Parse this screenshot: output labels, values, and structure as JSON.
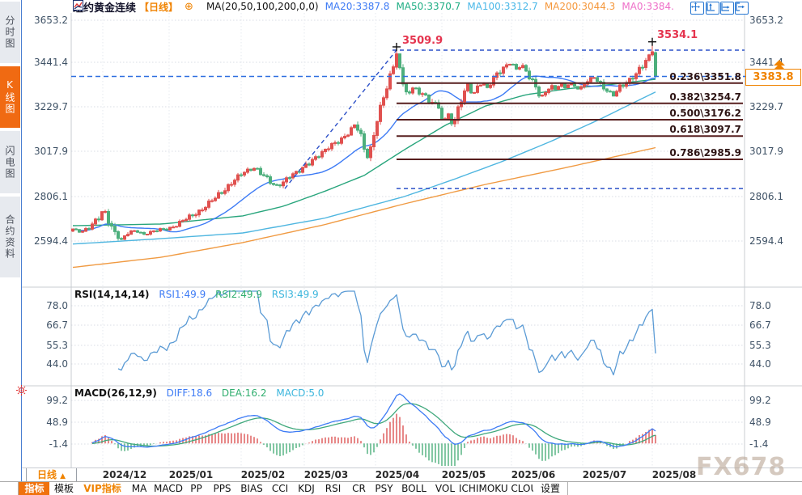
{
  "window_title": "纽约黄金连续",
  "sidebar": {
    "tabs": [
      {
        "label": "分时图",
        "active": false
      },
      {
        "label": "K线图",
        "active": true
      },
      {
        "label": "闪电图",
        "active": false
      },
      {
        "label": "合约资料",
        "active": false
      }
    ]
  },
  "header": {
    "symbol": "纽约黄金连续",
    "period_tag": "【日线】",
    "add_icon": "⊕",
    "ma_settings": "MA(20,50,100,200,0,0)",
    "ma_values": [
      {
        "label": "MA20:3387.8",
        "color": "#3d7bf5"
      },
      {
        "label": "MA50:3370.7",
        "color": "#1fae84"
      },
      {
        "label": "MA100:3312.7",
        "color": "#4ab8e8"
      },
      {
        "label": "MA200:3044.3",
        "color": "#f5983c"
      },
      {
        "label": "MA0:3384.",
        "color": "#ee6fc8"
      }
    ],
    "icons": [
      "pan-icon",
      "fit-y-icon",
      "fit-x-icon",
      "exit-icon"
    ]
  },
  "main_pane": {
    "y_ticks": [
      "3653.2",
      "3441.4",
      "3229.7",
      "3017.9",
      "2806.1",
      "2594.4"
    ],
    "swing_high_label": "3509.9",
    "recent_high_label": "3534.1",
    "last_price_label": "3383.8",
    "fib": [
      {
        "label": "0.236\\3351.8"
      },
      {
        "label": "0.382\\3254.7"
      },
      {
        "label": "0.500\\3176.2"
      },
      {
        "label": "0.618\\3097.7"
      },
      {
        "label": "0.786\\2985.9"
      }
    ]
  },
  "rsi_pane": {
    "title": "RSI(14,14,14)",
    "values": [
      {
        "label": "RSI1:49.9",
        "color": "#3d7bf5"
      },
      {
        "label": "RSI2:49.9",
        "color": "#2fae6e"
      },
      {
        "label": "RSI3:49.9",
        "color": "#3ab5dc"
      }
    ],
    "y_ticks": [
      "78.0",
      "66.7",
      "55.3",
      "44.0"
    ]
  },
  "macd_pane": {
    "title": "MACD(26,12,9)",
    "values": [
      {
        "label": "DIFF:18.6",
        "color": "#3d7bf5"
      },
      {
        "label": "DEA:16.2",
        "color": "#2fae6e"
      },
      {
        "label": "MACD:5.0",
        "color": "#3ab5dc"
      }
    ],
    "y_ticks": [
      "99.2",
      "48.9",
      "-1.4"
    ]
  },
  "x_axis": {
    "period_label": "日线",
    "period_arrow": "▲",
    "months": [
      "2024/12",
      "2025/01",
      "2025/02",
      "2025/03",
      "2025/04",
      "2025/05",
      "2025/06",
      "2025/07",
      "2025/08"
    ]
  },
  "toolbar": {
    "items": [
      {
        "label": "指标",
        "state": "active"
      },
      {
        "label": "模板",
        "state": "normal"
      },
      {
        "label": "VIP指标",
        "state": "vip"
      },
      {
        "label": "MA",
        "state": "normal"
      },
      {
        "label": "MACD",
        "state": "normal"
      },
      {
        "label": "PP",
        "state": "normal"
      },
      {
        "label": "PPS",
        "state": "normal"
      },
      {
        "label": "BIAS",
        "state": "normal"
      },
      {
        "label": "CCI",
        "state": "normal"
      },
      {
        "label": "KDJ",
        "state": "normal"
      },
      {
        "label": "RSI",
        "state": "normal"
      },
      {
        "label": "CR",
        "state": "normal"
      },
      {
        "label": "PSY",
        "state": "normal"
      },
      {
        "label": "BOLL",
        "state": "normal"
      },
      {
        "label": "VOL",
        "state": "normal"
      },
      {
        "label": "ICHIMOKU CLOUD",
        "state": "normal"
      },
      {
        "label": "设置",
        "state": "normal"
      }
    ]
  },
  "watermark": "FX678",
  "chart_data": {
    "type": "candlestick+indicators",
    "symbol": "纽约黄金连续",
    "period": "日线",
    "y_axis_values": [
      3653.2,
      3441.4,
      3229.7,
      3017.9,
      2806.1,
      2594.4
    ],
    "months": [
      "2024/12",
      "2025/01",
      "2025/02",
      "2025/03",
      "2025/04",
      "2025/05",
      "2025/06",
      "2025/07",
      "2025/08"
    ],
    "annotations": {
      "swing_high": 3509.9,
      "recent_high": 3534.1,
      "last_price": 3383.8,
      "fib_base_low": 2846
    },
    "fib_levels": [
      {
        "ratio": 0.236,
        "value": 3351.8
      },
      {
        "ratio": 0.382,
        "value": 3254.7
      },
      {
        "ratio": 0.5,
        "value": 3176.2
      },
      {
        "ratio": 0.618,
        "value": 3097.7
      },
      {
        "ratio": 0.786,
        "value": 2985.9
      }
    ],
    "ma_current": {
      "ma20": 3387.8,
      "ma50": 3370.7,
      "ma100": 3312.7,
      "ma200": 3044.3,
      "ma0": 3384
    },
    "rsi_current": {
      "rsi1": 49.9,
      "rsi2": 49.9,
      "rsi3": 49.9
    },
    "macd_current": {
      "diff": 18.6,
      "dea": 16.2,
      "macd": 5.0
    },
    "rsi_axis": [
      78.0,
      66.7,
      55.3,
      44.0
    ],
    "macd_axis": [
      99.2,
      48.9,
      -1.4
    ],
    "price_anchors": [
      [
        90,
        2650
      ],
      [
        100,
        2638
      ],
      [
        112,
        2668
      ],
      [
        122,
        2700
      ],
      [
        128,
        2748
      ],
      [
        134,
        2695
      ],
      [
        142,
        2640
      ],
      [
        150,
        2600
      ],
      [
        158,
        2630
      ],
      [
        168,
        2645
      ],
      [
        178,
        2628
      ],
      [
        188,
        2638
      ],
      [
        198,
        2648
      ],
      [
        208,
        2655
      ],
      [
        218,
        2672
      ],
      [
        228,
        2695
      ],
      [
        238,
        2718
      ],
      [
        248,
        2745
      ],
      [
        258,
        2775
      ],
      [
        268,
        2805
      ],
      [
        278,
        2845
      ],
      [
        288,
        2885
      ],
      [
        298,
        2912
      ],
      [
        308,
        2935
      ],
      [
        316,
        2948
      ],
      [
        324,
        2918
      ],
      [
        332,
        2880
      ],
      [
        340,
        2855
      ],
      [
        348,
        2872
      ],
      [
        356,
        2905
      ],
      [
        364,
        2918
      ],
      [
        372,
        2930
      ],
      [
        380,
        2965
      ],
      [
        390,
        3000
      ],
      [
        400,
        3022
      ],
      [
        410,
        3052
      ],
      [
        420,
        3080
      ],
      [
        430,
        3115
      ],
      [
        438,
        3148
      ],
      [
        444,
        3120
      ],
      [
        450,
        3035
      ],
      [
        455,
        2992
      ],
      [
        460,
        3075
      ],
      [
        466,
        3180
      ],
      [
        472,
        3255
      ],
      [
        478,
        3325
      ],
      [
        484,
        3405
      ],
      [
        490,
        3495
      ],
      [
        494,
        3420
      ],
      [
        500,
        3330
      ],
      [
        506,
        3295
      ],
      [
        512,
        3345
      ],
      [
        518,
        3290
      ],
      [
        524,
        3320
      ],
      [
        530,
        3255
      ],
      [
        536,
        3285
      ],
      [
        542,
        3215
      ],
      [
        548,
        3165
      ],
      [
        554,
        3200
      ],
      [
        560,
        3150
      ],
      [
        566,
        3235
      ],
      [
        572,
        3300
      ],
      [
        578,
        3340
      ],
      [
        584,
        3290
      ],
      [
        590,
        3330
      ],
      [
        596,
        3360
      ],
      [
        602,
        3330
      ],
      [
        608,
        3365
      ],
      [
        614,
        3390
      ],
      [
        620,
        3410
      ],
      [
        626,
        3435
      ],
      [
        632,
        3452
      ],
      [
        638,
        3420
      ],
      [
        644,
        3445
      ],
      [
        650,
        3400
      ],
      [
        656,
        3365
      ],
      [
        662,
        3330
      ],
      [
        668,
        3285
      ],
      [
        674,
        3310
      ],
      [
        680,
        3340
      ],
      [
        686,
        3320
      ],
      [
        692,
        3345
      ],
      [
        698,
        3330
      ],
      [
        704,
        3355
      ],
      [
        710,
        3340
      ],
      [
        716,
        3320
      ],
      [
        722,
        3345
      ],
      [
        728,
        3365
      ],
      [
        734,
        3380
      ],
      [
        740,
        3360
      ],
      [
        746,
        3335
      ],
      [
        752,
        3310
      ],
      [
        758,
        3290
      ],
      [
        764,
        3320
      ],
      [
        770,
        3345
      ],
      [
        776,
        3365
      ],
      [
        782,
        3385
      ],
      [
        788,
        3405
      ],
      [
        794,
        3430
      ],
      [
        800,
        3465
      ],
      [
        806,
        3505
      ],
      [
        810,
        3390
      ]
    ],
    "ma50_path": [
      [
        90,
        2668
      ],
      [
        200,
        2676
      ],
      [
        300,
        2715
      ],
      [
        350,
        2761
      ],
      [
        400,
        2831
      ],
      [
        450,
        2909
      ],
      [
        500,
        3033
      ],
      [
        550,
        3149
      ],
      [
        600,
        3242
      ],
      [
        650,
        3296
      ],
      [
        700,
        3324
      ],
      [
        750,
        3343
      ],
      [
        812,
        3371
      ]
    ],
    "ma100_path": [
      [
        90,
        2580
      ],
      [
        200,
        2606
      ],
      [
        300,
        2633
      ],
      [
        400,
        2703
      ],
      [
        500,
        2808
      ],
      [
        560,
        2889
      ],
      [
        620,
        2975
      ],
      [
        680,
        3071
      ],
      [
        740,
        3176
      ],
      [
        812,
        3313
      ]
    ],
    "ma200_path": [
      [
        90,
        2468
      ],
      [
        200,
        2517
      ],
      [
        300,
        2587
      ],
      [
        400,
        2672
      ],
      [
        500,
        2773
      ],
      [
        600,
        2866
      ],
      [
        700,
        2947
      ],
      [
        812,
        3044
      ]
    ]
  },
  "colors": {
    "up": "#e0514f",
    "down": "#4daf7c",
    "ma20": "#3d7bf5",
    "ma50": "#28a57c",
    "ma100": "#4fb6e0",
    "ma200": "#f09a42",
    "price_line": "#2e6ee0",
    "dashed_navy": "#2c50c8",
    "fib_line": "#571e1e",
    "annotation_red": "#e5344e",
    "accent_orange": "#f08300",
    "rsi_line": "#5b9bd5",
    "diff_line": "#3d7bf5",
    "dea_line": "#3fa87c",
    "hist_up": "#dd5555",
    "hist_down": "#4daf7c",
    "grid": "#d8dce4"
  }
}
